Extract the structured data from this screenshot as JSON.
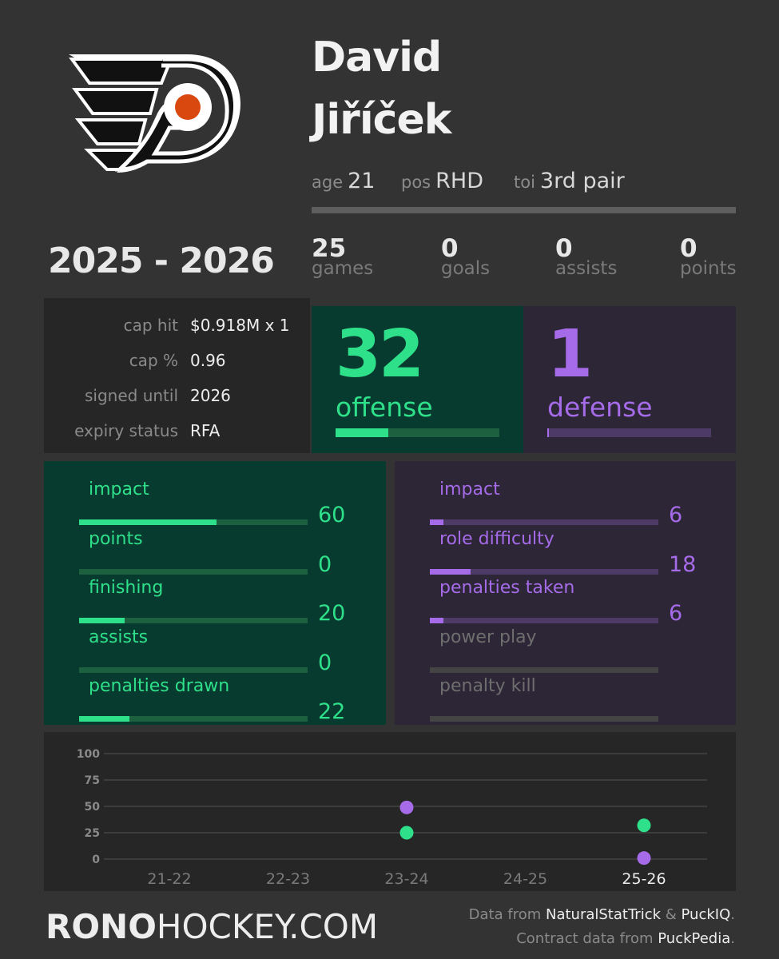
{
  "colors": {
    "background": "#333333",
    "offense": "#2fe08a",
    "offense_panel": "#083b2f",
    "offense_track": "#1d6040",
    "defense": "#a56be8",
    "defense_panel": "#2c2636",
    "defense_track": "#4d3a66",
    "muted": "#8a8a8a"
  },
  "logo": {
    "icon": "flyers-logo"
  },
  "player": {
    "first_name": "David",
    "last_name": "Jiříček",
    "age_label": "age",
    "age": "21",
    "pos_label": "pos",
    "pos": "RHD",
    "toi_label": "toi",
    "toi": "3rd pair"
  },
  "season": "2025 - 2026",
  "stats": [
    {
      "value": "25",
      "label": "games"
    },
    {
      "value": "0",
      "label": "goals"
    },
    {
      "value": "0",
      "label": "assists"
    },
    {
      "value": "0",
      "label": "points"
    }
  ],
  "contract": [
    {
      "label": "cap hit",
      "value": "$0.918M x 1"
    },
    {
      "label": "cap %",
      "value": "0.96"
    },
    {
      "label": "signed until",
      "value": "2026"
    },
    {
      "label": "expiry status",
      "value": "RFA"
    }
  ],
  "offense": {
    "value": "32",
    "label": "offense",
    "level": 0.32
  },
  "defense": {
    "value": "1",
    "label": "defense",
    "level": 0.01
  },
  "offense_metrics": [
    {
      "label": "impact",
      "value": "60",
      "level": 0.6
    },
    {
      "label": "points",
      "value": "0",
      "level": 0
    },
    {
      "label": "finishing",
      "value": "20",
      "level": 0.2
    },
    {
      "label": "assists",
      "value": "0",
      "level": 0
    },
    {
      "label": "penalties drawn",
      "value": "22",
      "level": 0.22
    }
  ],
  "defense_metrics": [
    {
      "label": "impact",
      "value": "6",
      "level": 0.06,
      "active": true
    },
    {
      "label": "role difficulty",
      "value": "18",
      "level": 0.18,
      "active": true
    },
    {
      "label": "penalties taken",
      "value": "6",
      "level": 0.06,
      "active": true
    },
    {
      "label": "power play",
      "value": "",
      "level": 0,
      "active": false
    },
    {
      "label": "penalty kill",
      "value": "",
      "level": 0,
      "active": false
    }
  ],
  "chart_data": {
    "type": "scatter",
    "categories": [
      "21-22",
      "22-23",
      "23-24",
      "24-25",
      "25-26"
    ],
    "highlight_category": "25-26",
    "yticks": [
      "0",
      "25",
      "50",
      "75",
      "100"
    ],
    "ylim": [
      0,
      100
    ],
    "grid": true,
    "series": [
      {
        "color": "#a56be8",
        "values": [
          null,
          null,
          49,
          null,
          1
        ]
      },
      {
        "color": "#2fe08a",
        "values": [
          null,
          null,
          25,
          null,
          32
        ]
      }
    ]
  },
  "footer": {
    "brand_bold": "RONO",
    "brand_rest": "HOCKEY.COM",
    "line1_prefix": "Data from ",
    "line1_src1": "NaturalStatTrick",
    "line1_amp": " & ",
    "line1_src2": "PuckIQ",
    "line1_end": ".",
    "line2_prefix": "Contract data from ",
    "line2_src": "PuckPedia",
    "line2_end": "."
  }
}
